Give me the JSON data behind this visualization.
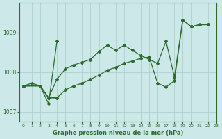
{
  "xlabel": "Graphe pression niveau de la mer (hPa)",
  "xlim": [
    -0.5,
    23
  ],
  "ylim": [
    1006.75,
    1009.75
  ],
  "yticks": [
    1007,
    1008,
    1009
  ],
  "xticks": [
    0,
    1,
    2,
    3,
    4,
    5,
    6,
    7,
    8,
    9,
    10,
    11,
    12,
    13,
    14,
    15,
    16,
    17,
    18,
    19,
    20,
    21,
    22,
    23
  ],
  "bg_color": "#cce8e8",
  "line_color": "#2d6a2d",
  "grid_color": "#aacccc",
  "line1_x": [
    0,
    1,
    2,
    3,
    4,
    5,
    6,
    7,
    8,
    9,
    10,
    11,
    12,
    13,
    14,
    15,
    16,
    17,
    18,
    19,
    20,
    21,
    22
  ],
  "line1_y": [
    1007.65,
    1007.72,
    1007.65,
    1007.35,
    1007.82,
    1008.08,
    1008.18,
    1008.25,
    1008.32,
    1008.52,
    1008.68,
    1008.55,
    1008.68,
    1008.55,
    1008.42,
    1008.32,
    1008.22,
    1008.78,
    1007.88,
    1009.32,
    1009.15,
    1009.2,
    1009.2
  ],
  "line2_x": [
    0,
    2,
    3,
    4,
    5,
    6,
    7,
    8,
    9,
    10,
    11,
    12,
    13,
    14,
    15,
    16,
    17,
    18,
    19,
    20,
    21,
    22
  ],
  "line2_y": [
    1007.65,
    1007.65,
    1007.35,
    1007.35,
    1007.55,
    1007.65,
    1007.72,
    1007.82,
    1007.92,
    1008.05,
    1008.12,
    1008.22,
    1008.28,
    1008.35,
    1008.38,
    1007.72,
    1007.62,
    1007.78,
    1009.32,
    1009.15,
    1009.2,
    1009.2
  ],
  "line3_x": [
    0,
    2,
    3,
    4
  ],
  "line3_y": [
    1007.65,
    1007.65,
    1007.35,
    1007.35
  ],
  "line4_x": [
    2,
    3,
    4
  ],
  "line4_y": [
    1007.65,
    1007.2,
    1008.78
  ]
}
